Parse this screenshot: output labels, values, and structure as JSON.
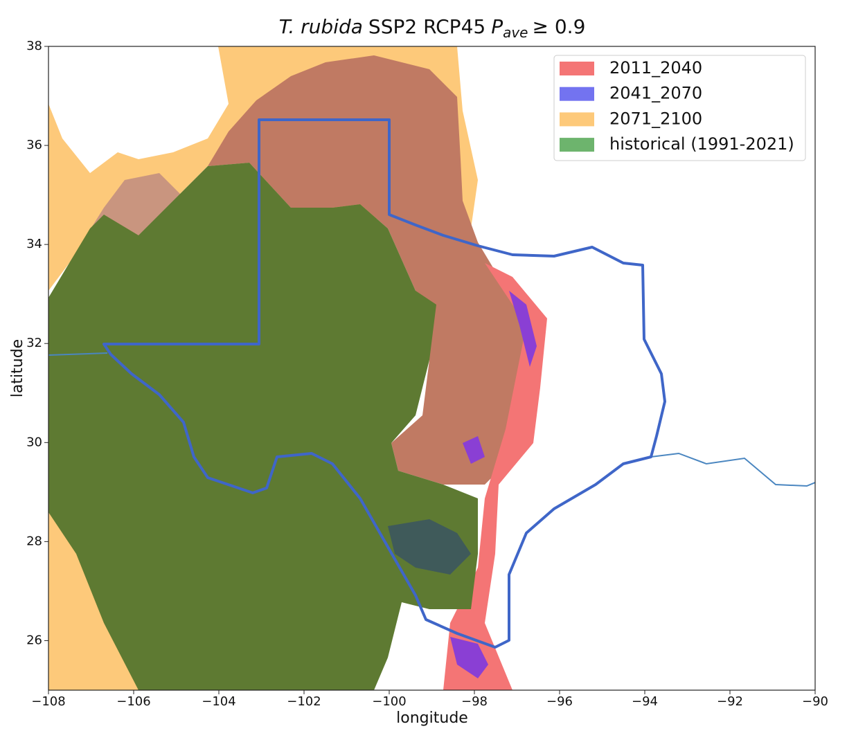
{
  "chart_data": {
    "type": "map",
    "title": {
      "species": "T. rubida",
      "scenario": "SSP2 RCP45",
      "symbol": "P",
      "subscript": "ave",
      "threshold": "≥ 0.9"
    },
    "x_label": "longitude",
    "y_label": "latitude",
    "xlim": [
      -108,
      -90
    ],
    "ylim": [
      25,
      38
    ],
    "xticks": [
      {
        "value": -108,
        "label": "−108"
      },
      {
        "value": -106,
        "label": "−106"
      },
      {
        "value": -104,
        "label": "−104"
      },
      {
        "value": -102,
        "label": "−102"
      },
      {
        "value": -100,
        "label": "−100"
      },
      {
        "value": -98,
        "label": "−98"
      },
      {
        "value": -96,
        "label": "−96"
      },
      {
        "value": -94,
        "label": "−94"
      },
      {
        "value": -92,
        "label": "−92"
      },
      {
        "value": -90,
        "label": "−90"
      }
    ],
    "yticks": [
      26,
      28,
      30,
      32,
      34,
      36,
      38
    ],
    "legend": "upper right",
    "series": [
      {
        "name": "2011_2040",
        "color": "#f47575"
      },
      {
        "name": "2041_2070",
        "color": "#7373f0"
      },
      {
        "name": "2071_2100",
        "color": "#fdc97a"
      },
      {
        "name": "historical (1991-2021)",
        "color": "#6db46d"
      }
    ]
  }
}
